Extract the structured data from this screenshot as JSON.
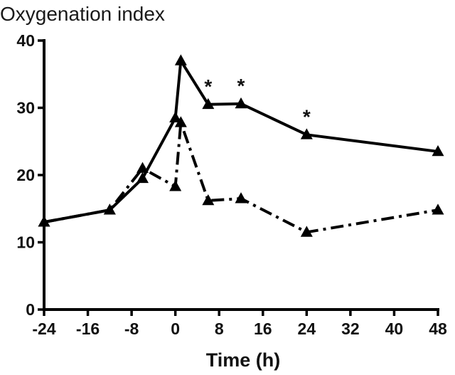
{
  "chart_data": {
    "type": "line",
    "title": "Oxygenation index",
    "xlabel": "Time (h)",
    "ylabel": "",
    "xlim": [
      -24,
      48
    ],
    "ylim": [
      0,
      40
    ],
    "xticks": [
      -24,
      -16,
      -8,
      0,
      8,
      16,
      24,
      32,
      40,
      48
    ],
    "yticks": [
      0,
      10,
      20,
      30,
      40
    ],
    "grid": false,
    "marker": "triangle",
    "color": "#000000",
    "series": [
      {
        "style": "solid",
        "x": [
          -24,
          -12,
          -6,
          0,
          1,
          6,
          12,
          24,
          48
        ],
        "y": [
          13,
          14.8,
          19.5,
          28.5,
          37,
          30.5,
          30.6,
          26,
          23.5
        ]
      },
      {
        "style": "dash-dot",
        "x": [
          -24,
          -12,
          -6,
          0,
          1,
          6,
          12,
          24,
          48
        ],
        "y": [
          13,
          14.8,
          21,
          18.3,
          27.8,
          16.2,
          16.5,
          11.5,
          14.8
        ]
      }
    ],
    "annotations": [
      {
        "text": "*",
        "x": 6,
        "y": 30.5
      },
      {
        "text": "*",
        "x": 12,
        "y": 30.6
      },
      {
        "text": "*",
        "x": 24,
        "y": 26
      }
    ]
  }
}
